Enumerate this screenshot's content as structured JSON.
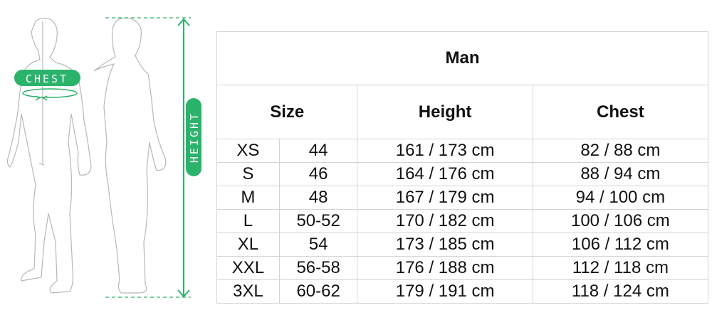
{
  "figure": {
    "chest_label": "CHEST",
    "height_label": "HEIGHT",
    "accent_color": "#2bb36b"
  },
  "table": {
    "title": "Man",
    "headers": {
      "size": "Size",
      "height": "Height",
      "chest": "Chest"
    },
    "rows": [
      {
        "size": "XS",
        "number": "44",
        "height": "161 / 173 cm",
        "chest": "82 / 88 cm"
      },
      {
        "size": "S",
        "number": "46",
        "height": "164 / 176 cm",
        "chest": "88 / 94 cm"
      },
      {
        "size": "M",
        "number": "48",
        "height": "167 / 179 cm",
        "chest": "94 / 100 cm"
      },
      {
        "size": "L",
        "number": "50-52",
        "height": "170 / 182 cm",
        "chest": "100 / 106 cm"
      },
      {
        "size": "XL",
        "number": "54",
        "height": "173 / 185 cm",
        "chest": "106 / 112 cm"
      },
      {
        "size": "XXL",
        "number": "56-58",
        "height": "176 / 188 cm",
        "chest": "112 / 118 cm"
      },
      {
        "size": "3XL",
        "number": "60-62",
        "height": "179 / 191 cm",
        "chest": "118 / 124 cm"
      }
    ]
  }
}
